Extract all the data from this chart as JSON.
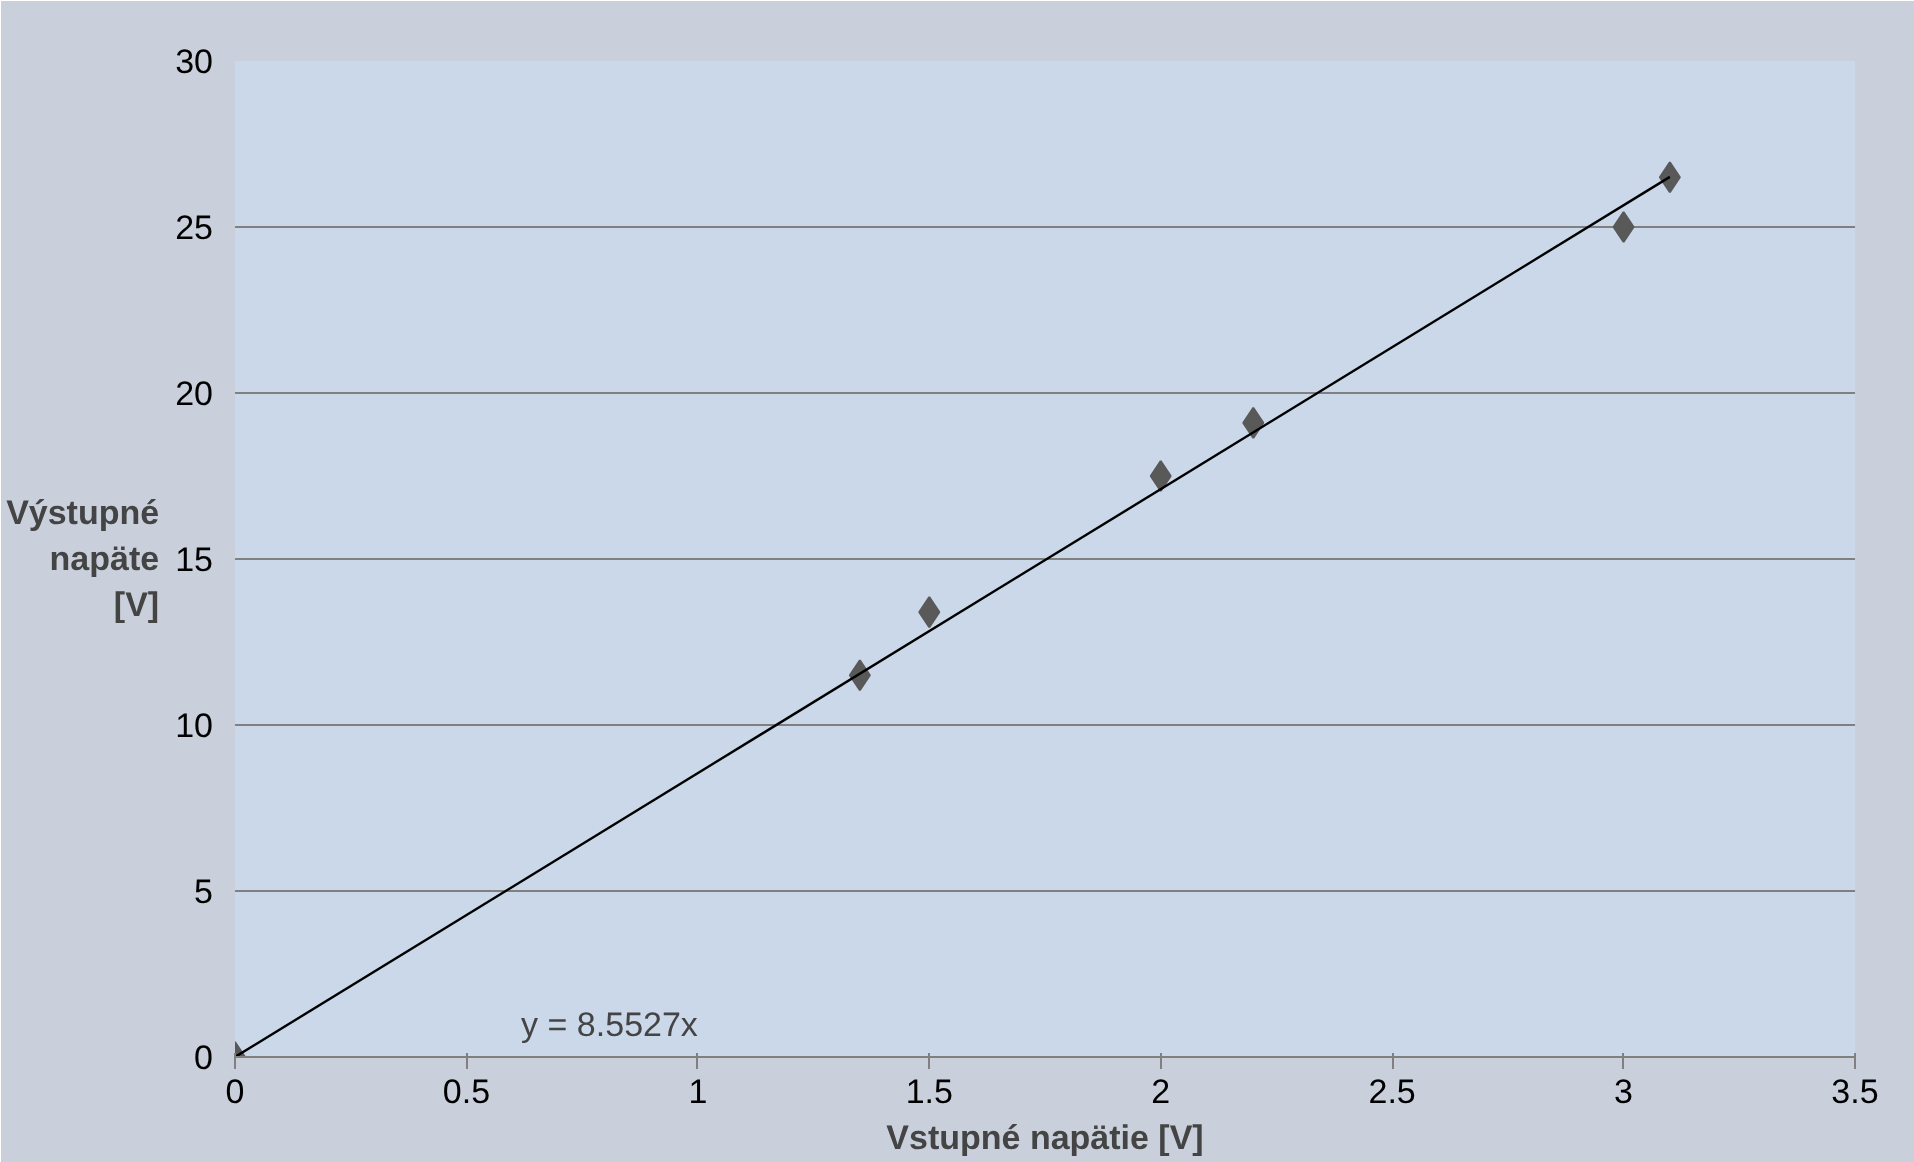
{
  "chart_data": {
    "type": "scatter",
    "xlabel": "Vstupné napätie [V]",
    "ylabel": "Výstupné\nnapäte\n[V]",
    "xlim": [
      0,
      3.5
    ],
    "xticks": [
      0,
      0.5,
      1,
      1.5,
      2,
      2.5,
      3,
      3.5
    ],
    "ylim": [
      0,
      30
    ],
    "yticks": [
      0,
      5,
      10,
      15,
      20,
      25,
      30
    ],
    "grid": "y",
    "marker": "diamond",
    "series": [
      {
        "color": "#595959",
        "x": [
          0,
          1.35,
          1.5,
          2,
          2.2,
          3,
          3.1
        ],
        "values": [
          0,
          11.5,
          13.4,
          17.5,
          19.1,
          25,
          26.5
        ]
      },
      {
        "type": "line",
        "color": "#000000",
        "x": [
          0,
          3.1
        ],
        "values": [
          0,
          26.51
        ],
        "marker": "none"
      }
    ],
    "annotations": [
      "y = 8.5527x"
    ]
  }
}
